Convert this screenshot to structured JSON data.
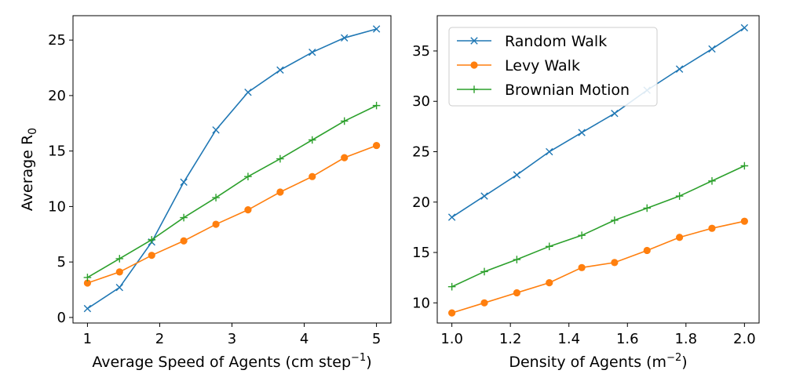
{
  "chart_data": [
    {
      "type": "line",
      "xlabel": "Average Speed of Agents (cm step",
      "xlabel_sup": "−1",
      "xlabel_tail": ")",
      "ylabel": "Average R",
      "ylabel_sub": "0",
      "xlim": [
        0.8,
        5.2
      ],
      "ylim": [
        -0.5,
        27.2
      ],
      "xticks": [
        1,
        2,
        3,
        4,
        5
      ],
      "xtick_labels": [
        "1",
        "2",
        "3",
        "4",
        "5"
      ],
      "yticks": [
        0,
        5,
        10,
        15,
        20,
        25
      ],
      "ytick_labels": [
        "0",
        "5",
        "10",
        "15",
        "20",
        "25"
      ],
      "x": [
        1.0,
        1.444,
        1.889,
        2.333,
        2.778,
        3.222,
        3.667,
        4.111,
        4.556,
        5.0
      ],
      "series": [
        {
          "name": "Random Walk",
          "color": "#1f77b4",
          "marker": "x",
          "values": [
            0.8,
            2.7,
            6.8,
            12.2,
            16.9,
            20.3,
            22.3,
            23.9,
            25.2,
            26.0
          ]
        },
        {
          "name": "Levy Walk",
          "color": "#ff7f0e",
          "marker": "o",
          "values": [
            3.1,
            4.1,
            5.6,
            6.9,
            8.4,
            9.7,
            11.3,
            12.7,
            14.4,
            15.5
          ]
        },
        {
          "name": "Brownian Motion",
          "color": "#2ca02c",
          "marker": "+",
          "values": [
            3.6,
            5.3,
            7.0,
            9.0,
            10.8,
            12.7,
            14.3,
            16.0,
            17.7,
            19.1
          ]
        }
      ],
      "grid": false
    },
    {
      "type": "line",
      "xlabel": "Density of Agents (m",
      "xlabel_sup": "−2",
      "xlabel_tail": ")",
      "ylabel": "",
      "xlim": [
        0.95,
        2.05
      ],
      "ylim": [
        8.0,
        38.5
      ],
      "xticks": [
        1.0,
        1.2,
        1.4,
        1.6,
        1.8,
        2.0
      ],
      "xtick_labels": [
        "1.0",
        "1.2",
        "1.4",
        "1.6",
        "1.8",
        "2.0"
      ],
      "yticks": [
        10,
        15,
        20,
        25,
        30,
        35
      ],
      "ytick_labels": [
        "10",
        "15",
        "20",
        "25",
        "30",
        "35"
      ],
      "x": [
        1.0,
        1.111,
        1.222,
        1.333,
        1.444,
        1.556,
        1.667,
        1.778,
        1.889,
        2.0
      ],
      "series": [
        {
          "name": "Random Walk",
          "color": "#1f77b4",
          "marker": "x",
          "values": [
            18.5,
            20.6,
            22.7,
            25.0,
            26.9,
            28.8,
            31.1,
            33.2,
            35.2,
            37.3
          ]
        },
        {
          "name": "Levy Walk",
          "color": "#ff7f0e",
          "marker": "o",
          "values": [
            9.0,
            10.0,
            11.0,
            12.0,
            13.5,
            14.0,
            15.2,
            16.5,
            17.4,
            18.1
          ]
        },
        {
          "name": "Brownian Motion",
          "color": "#2ca02c",
          "marker": "+",
          "values": [
            11.6,
            13.1,
            14.3,
            15.6,
            16.7,
            18.2,
            19.4,
            20.6,
            22.1,
            23.6
          ]
        }
      ],
      "legend": {
        "position": "top-left",
        "entries": [
          "Random Walk",
          "Levy Walk",
          "Brownian Motion"
        ]
      },
      "grid": false
    }
  ]
}
